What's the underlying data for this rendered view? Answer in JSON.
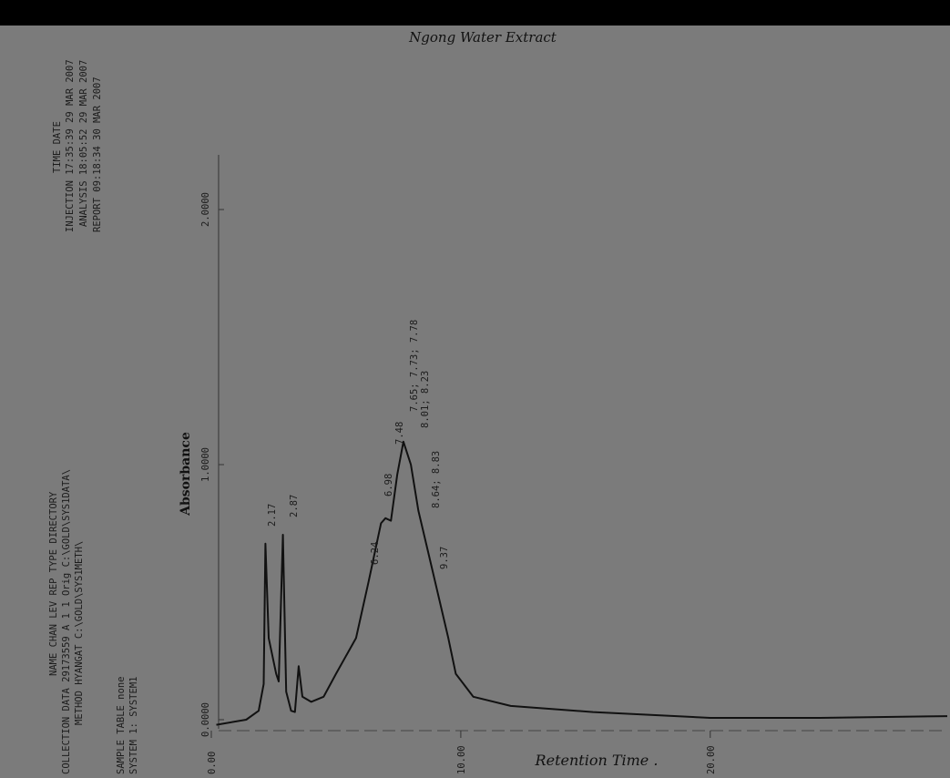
{
  "report_header": {
    "columns_header": "NAME      CHAN LEV REP TYPE DIRECTORY",
    "collection": "COLLECTION  DATA  29173559  A   1   1  Orig  C:\\GOLD\\SYS1DATA\\",
    "method": "METHOD  HYANGAT                     C:\\GOLD\\SYS1METH\\",
    "sample_table": "SAMPLE TABLE         none",
    "system": "SYSTEM 1: SYSTEM1",
    "time_header": "TIME       DATE",
    "injection": "INJECTION  17:35:39  29 MAR 2007",
    "analysis": "ANALYSIS  18:05:52  29 MAR 2007",
    "report": "REPORT  09:18:34  30 MAR 2007"
  },
  "chart_data": {
    "type": "line",
    "title": "Ngong   Water Extract",
    "y_label": "Absorbance",
    "x_label": "Retention  Time  .",
    "x": [
      0.2,
      1.4,
      1.9,
      2.1,
      2.17,
      2.3,
      2.6,
      2.7,
      2.87,
      3.0,
      3.2,
      3.35,
      3.5,
      3.65,
      4.0,
      4.5,
      5.0,
      5.8,
      6.3,
      6.8,
      6.98,
      7.2,
      7.45,
      7.7,
      8.0,
      8.3,
      8.9,
      9.5,
      9.8,
      10.5,
      12,
      15.3,
      20,
      24.4,
      29.5
    ],
    "values": [
      -0.02,
      0.0,
      0.035,
      0.14,
      0.69,
      0.32,
      0.18,
      0.15,
      0.725,
      0.11,
      0.035,
      0.03,
      0.21,
      0.09,
      0.07,
      0.09,
      0.18,
      0.32,
      0.54,
      0.77,
      0.79,
      0.78,
      0.96,
      1.09,
      1.0,
      0.82,
      0.57,
      0.32,
      0.18,
      0.09,
      0.054,
      0.03,
      0.007,
      0.007,
      0.014
    ],
    "color": "#111111",
    "xlim": [
      0,
      29.5
    ],
    "ylim": [
      0,
      2
    ],
    "xticks": [
      {
        "value": 0,
        "label": "0.00"
      },
      {
        "value": 10,
        "label": "10.00"
      },
      {
        "value": 20,
        "label": "20.00"
      }
    ],
    "yticks": [
      {
        "value": 0,
        "label": "0.0000"
      },
      {
        "value": 1,
        "label": "1.0000"
      },
      {
        "value": 2,
        "label": "2.0000"
      }
    ],
    "annotations": [
      "2.17",
      "2.87",
      "6.24",
      "6.98",
      "7.48",
      "7.65; 7.73; 7.78",
      "8.01; 8.23",
      "8.64; 8.83",
      "9.37"
    ]
  }
}
